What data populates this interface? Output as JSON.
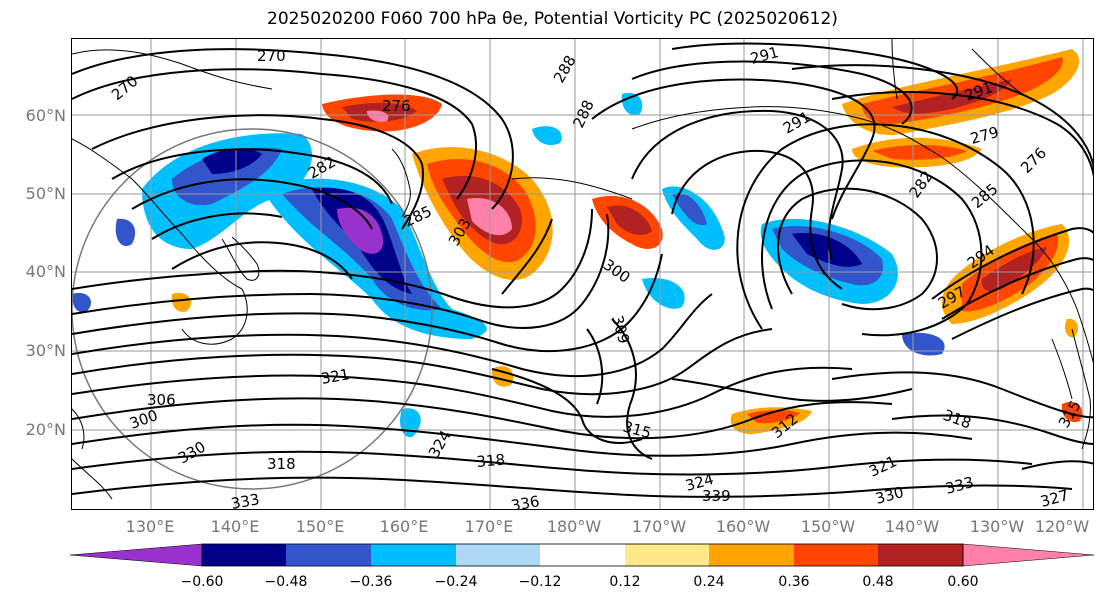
{
  "title": "2025020200 F060 700 hPa θe, Potential Vorticity PC (2025020612)",
  "map": {
    "lat_labels": [
      "60°N",
      "50°N",
      "40°N",
      "30°N",
      "20°N"
    ],
    "lon_labels": [
      "130°E",
      "140°E",
      "150°E",
      "160°E",
      "170°E",
      "180°W",
      "170°W",
      "160°W",
      "150°W",
      "140°W",
      "130°W",
      "120°W"
    ],
    "contour_labels": [
      "270",
      "270",
      "276",
      "282",
      "285",
      "288",
      "288",
      "291",
      "291",
      "291",
      "279",
      "276",
      "282",
      "285",
      "294",
      "297",
      "300",
      "303",
      "309",
      "306",
      "300",
      "318",
      "321",
      "324",
      "315",
      "312",
      "318",
      "321",
      "324",
      "330",
      "333",
      "327",
      "336",
      "339",
      "318",
      "330",
      "333",
      "315"
    ],
    "colors": {
      "contour": "#000000",
      "coast": "#000000",
      "grid": "#9a9a9a",
      "circle": "#777777"
    }
  },
  "colorbar": {
    "tick_labels": [
      "−0.60",
      "−0.48",
      "−0.36",
      "−0.24",
      "−0.12",
      "0.12",
      "0.24",
      "0.36",
      "0.48",
      "0.60"
    ],
    "colors": [
      "#9932cc",
      "#00008b",
      "#3355cc",
      "#00bfff",
      "#add8f6",
      "#ffffff",
      "#ffe98a",
      "#ffa500",
      "#ff4500",
      "#b22222",
      "#ff80a8"
    ]
  }
}
